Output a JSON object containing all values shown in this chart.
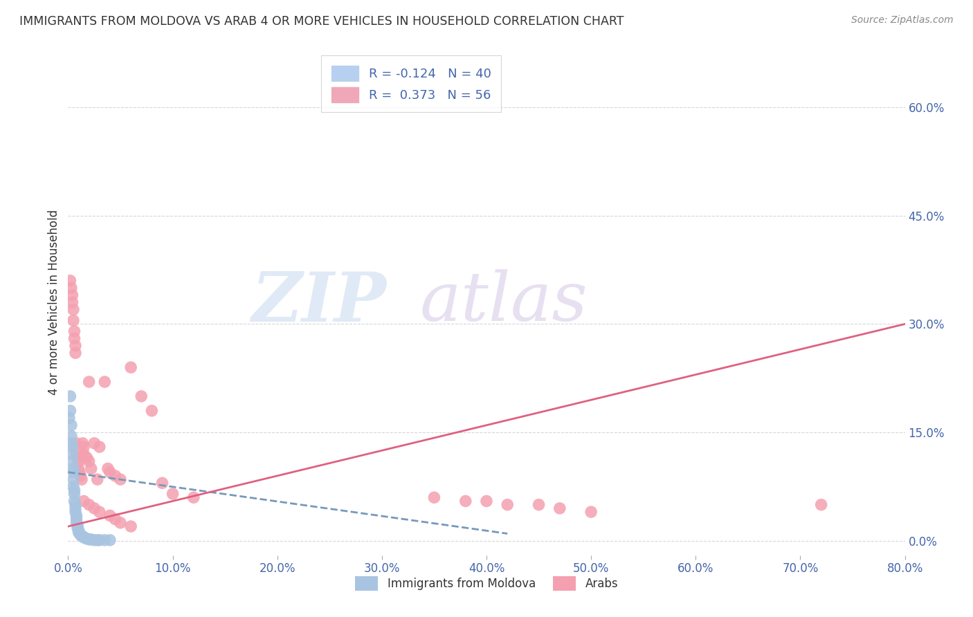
{
  "title": "IMMIGRANTS FROM MOLDOVA VS ARAB 4 OR MORE VEHICLES IN HOUSEHOLD CORRELATION CHART",
  "source": "Source: ZipAtlas.com",
  "ylabel": "4 or more Vehicles in Household",
  "xlim": [
    0,
    0.8
  ],
  "ylim": [
    -0.02,
    0.68
  ],
  "yticks": [
    0.0,
    0.15,
    0.3,
    0.45,
    0.6
  ],
  "ytick_labels": [
    "0.0%",
    "15.0%",
    "30.0%",
    "45.0%",
    "60.0%"
  ],
  "xticks": [
    0.0,
    0.1,
    0.2,
    0.3,
    0.4,
    0.5,
    0.6,
    0.7,
    0.8
  ],
  "xtick_labels": [
    "0.0%",
    "10.0%",
    "20.0%",
    "30.0%",
    "40.0%",
    "50.0%",
    "60.0%",
    "70.0%",
    "80.0%"
  ],
  "moldova_R": -0.124,
  "moldova_N": 40,
  "arab_R": 0.373,
  "arab_N": 56,
  "moldova_color": "#a8c4e0",
  "arab_color": "#f4a0b0",
  "moldova_line_color": "#7799bb",
  "arab_line_color": "#e06080",
  "axis_color": "#4466aa",
  "moldova_x": [
    0.001,
    0.002,
    0.002,
    0.003,
    0.003,
    0.003,
    0.004,
    0.004,
    0.004,
    0.005,
    0.005,
    0.005,
    0.005,
    0.006,
    0.006,
    0.006,
    0.007,
    0.007,
    0.007,
    0.008,
    0.008,
    0.008,
    0.009,
    0.009,
    0.01,
    0.01,
    0.011,
    0.012,
    0.013,
    0.014,
    0.015,
    0.016,
    0.018,
    0.02,
    0.022,
    0.025,
    0.028,
    0.03,
    0.035,
    0.04
  ],
  "moldova_y": [
    0.17,
    0.2,
    0.18,
    0.16,
    0.145,
    0.135,
    0.13,
    0.12,
    0.11,
    0.1,
    0.095,
    0.085,
    0.075,
    0.07,
    0.065,
    0.055,
    0.05,
    0.045,
    0.04,
    0.035,
    0.03,
    0.025,
    0.022,
    0.018,
    0.015,
    0.012,
    0.01,
    0.008,
    0.007,
    0.006,
    0.005,
    0.004,
    0.003,
    0.002,
    0.002,
    0.001,
    0.001,
    0.001,
    0.001,
    0.001
  ],
  "arab_x": [
    0.002,
    0.003,
    0.004,
    0.004,
    0.005,
    0.005,
    0.006,
    0.006,
    0.007,
    0.007,
    0.008,
    0.008,
    0.009,
    0.01,
    0.01,
    0.011,
    0.012,
    0.013,
    0.014,
    0.015,
    0.015,
    0.016,
    0.018,
    0.02,
    0.02,
    0.022,
    0.025,
    0.028,
    0.03,
    0.035,
    0.038,
    0.04,
    0.045,
    0.05,
    0.06,
    0.07,
    0.08,
    0.09,
    0.1,
    0.12,
    0.015,
    0.02,
    0.025,
    0.03,
    0.04,
    0.045,
    0.05,
    0.06,
    0.35,
    0.38,
    0.4,
    0.42,
    0.45,
    0.47,
    0.5,
    0.72
  ],
  "arab_y": [
    0.36,
    0.35,
    0.34,
    0.33,
    0.32,
    0.305,
    0.29,
    0.28,
    0.27,
    0.26,
    0.135,
    0.12,
    0.115,
    0.11,
    0.1,
    0.095,
    0.09,
    0.085,
    0.135,
    0.13,
    0.12,
    0.115,
    0.115,
    0.22,
    0.11,
    0.1,
    0.135,
    0.085,
    0.13,
    0.22,
    0.1,
    0.095,
    0.09,
    0.085,
    0.24,
    0.2,
    0.18,
    0.08,
    0.065,
    0.06,
    0.055,
    0.05,
    0.045,
    0.04,
    0.035,
    0.03,
    0.025,
    0.02,
    0.06,
    0.055,
    0.055,
    0.05,
    0.05,
    0.045,
    0.04,
    0.05
  ],
  "moldova_trend_x": [
    0.0,
    0.42
  ],
  "moldova_trend_y": [
    0.095,
    0.01
  ],
  "arab_trend_x": [
    0.0,
    0.8
  ],
  "arab_trend_y": [
    0.02,
    0.3
  ]
}
